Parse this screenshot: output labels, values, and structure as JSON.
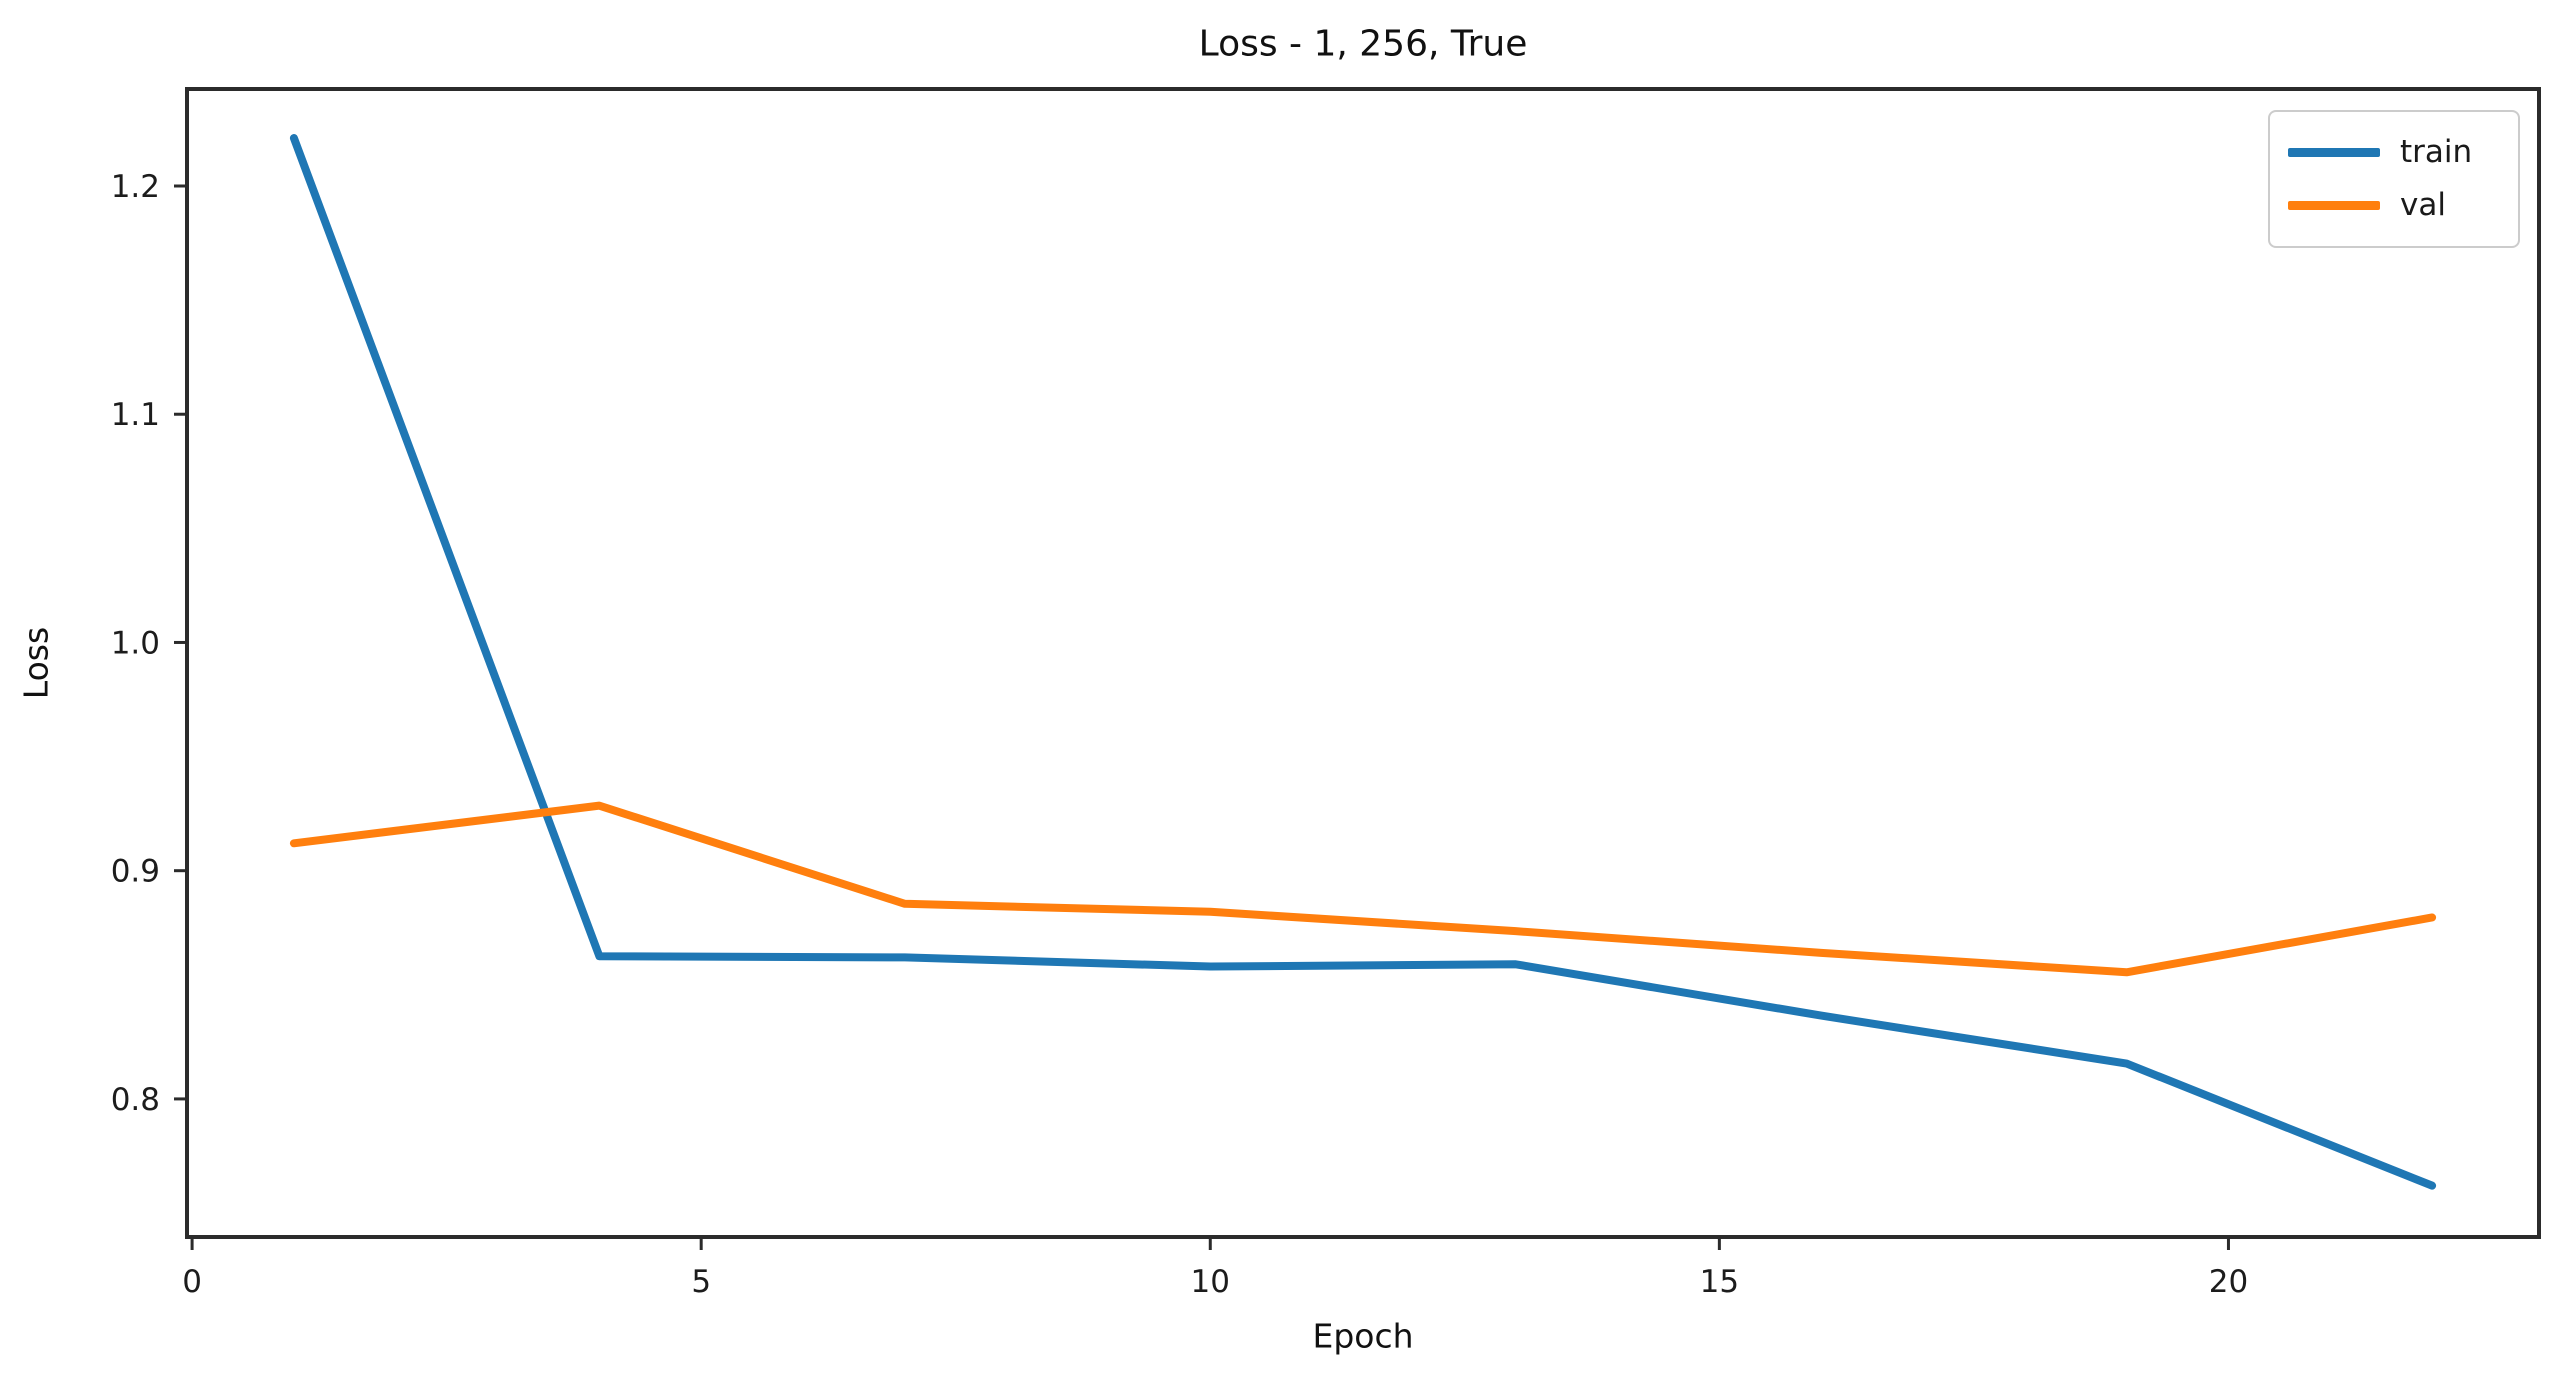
{
  "chart_data": {
    "type": "line",
    "title": "Loss - 1, 256, True",
    "xlabel": "Epoch",
    "ylabel": "Loss",
    "x": [
      1,
      4,
      7,
      10,
      13,
      16,
      19,
      22
    ],
    "series": [
      {
        "name": "train",
        "color": "#1f77b4",
        "values": [
          1.221,
          0.8625,
          0.862,
          0.858,
          0.859,
          0.8365,
          0.8155,
          0.762
        ]
      },
      {
        "name": "val",
        "color": "#ff7f0e",
        "values": [
          0.912,
          0.9285,
          0.8855,
          0.882,
          0.8735,
          0.864,
          0.8555,
          0.8795
        ]
      }
    ],
    "xticks": [
      0,
      5,
      10,
      15,
      20
    ],
    "yticks": [
      0.8,
      0.9,
      1.0,
      1.1,
      1.2
    ],
    "xtick_labels": [
      "0",
      "5",
      "10",
      "15",
      "20"
    ],
    "ytick_labels": [
      "0.8",
      "0.9",
      "1.0",
      "1.1",
      "1.2"
    ],
    "xlim": [
      -0.05,
      23.05
    ],
    "ylim": [
      0.7395,
      1.2425
    ],
    "grid": false,
    "legend_position": "upper right"
  },
  "colors": {
    "background": "#ffffff",
    "spine": "#2b2b2b",
    "tick_text": "#1c1c1c",
    "legend_border": "#cccccc",
    "train_line": "#1f77b4",
    "val_line": "#ff7f0e"
  }
}
